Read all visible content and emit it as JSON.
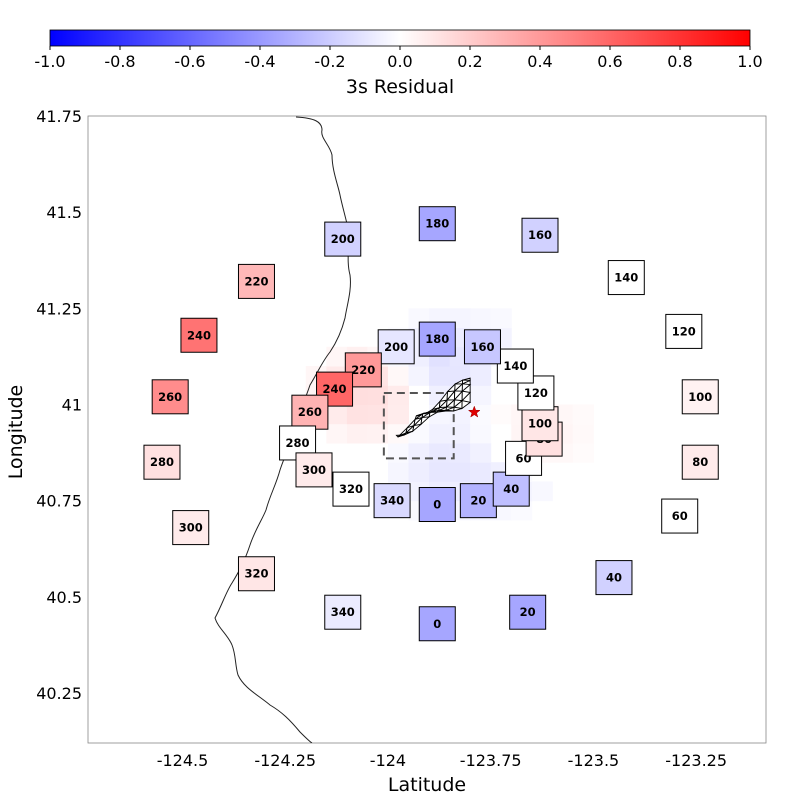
{
  "chart_data": {
    "type": "heatmap",
    "title": "",
    "xlabel": "Latitude",
    "ylabel": "Longitude",
    "xlim": [
      -124.73,
      -123.08
    ],
    "ylim": [
      40.12,
      41.75
    ],
    "x_ticks": [
      -124.5,
      -124.25,
      -124,
      -123.75,
      -123.5,
      -123.25
    ],
    "x_tick_labels": [
      "-124.5",
      "-124.25",
      "-124",
      "-123.75",
      "-123.5",
      "-123.25"
    ],
    "y_ticks": [
      40.25,
      40.5,
      40.75,
      41,
      41.25,
      41.5,
      41.75
    ],
    "y_tick_labels": [
      "40.25",
      "40.5",
      "40.75",
      "41",
      "41.25",
      "41.5",
      "41.75"
    ],
    "colorbar": {
      "label": "3s Residual",
      "range": [
        -1.0,
        1.0
      ],
      "ticks": [
        -1.0,
        -0.8,
        -0.6,
        -0.4,
        -0.2,
        0.0,
        0.2,
        0.4,
        0.6,
        0.8,
        1.0
      ],
      "tick_labels": [
        "-1.0",
        "-0.8",
        "-0.6",
        "-0.4",
        "-0.2",
        "0.0",
        "0.2",
        "0.4",
        "0.6",
        "0.8",
        "1.0"
      ],
      "colors": {
        "low": "#0000ff",
        "mid": "#ffffff",
        "high": "#ff0000"
      }
    },
    "station_rings": [
      {
        "ring": "outer",
        "stations": [
          {
            "az": "0",
            "x": -123.88,
            "y": 40.43,
            "residual": -0.35
          },
          {
            "az": "20",
            "x": -123.66,
            "y": 40.46,
            "residual": -0.35
          },
          {
            "az": "40",
            "x": -123.45,
            "y": 40.55,
            "residual": -0.18
          },
          {
            "az": "60",
            "x": -123.29,
            "y": 40.71,
            "residual": 0.0
          },
          {
            "az": "80",
            "x": -123.24,
            "y": 40.85,
            "residual": 0.08
          },
          {
            "az": "100",
            "x": -123.24,
            "y": 41.02,
            "residual": 0.05
          },
          {
            "az": "120",
            "x": -123.28,
            "y": 41.19,
            "residual": 0.0
          },
          {
            "az": "140",
            "x": -123.42,
            "y": 41.33,
            "residual": 0.0
          },
          {
            "az": "160",
            "x": -123.63,
            "y": 41.44,
            "residual": -0.18
          },
          {
            "az": "180",
            "x": -123.88,
            "y": 41.47,
            "residual": -0.35
          },
          {
            "az": "200",
            "x": -124.11,
            "y": 41.43,
            "residual": -0.18
          },
          {
            "az": "220",
            "x": -124.32,
            "y": 41.32,
            "residual": 0.28
          },
          {
            "az": "240",
            "x": -124.46,
            "y": 41.18,
            "residual": 0.55
          },
          {
            "az": "260",
            "x": -124.53,
            "y": 41.02,
            "residual": 0.45
          },
          {
            "az": "280",
            "x": -124.55,
            "y": 40.85,
            "residual": 0.12
          },
          {
            "az": "300",
            "x": -124.48,
            "y": 40.68,
            "residual": 0.08
          },
          {
            "az": "320",
            "x": -124.32,
            "y": 40.56,
            "residual": 0.1
          },
          {
            "az": "340",
            "x": -124.11,
            "y": 40.46,
            "residual": -0.08
          }
        ]
      },
      {
        "ring": "inner",
        "stations": [
          {
            "az": "0",
            "x": -123.88,
            "y": 40.74,
            "residual": -0.35
          },
          {
            "az": "20",
            "x": -123.78,
            "y": 40.75,
            "residual": -0.3
          },
          {
            "az": "40",
            "x": -123.7,
            "y": 40.78,
            "residual": -0.25
          },
          {
            "az": "60",
            "x": -123.67,
            "y": 40.86,
            "residual": 0.0
          },
          {
            "az": "80",
            "x": -123.62,
            "y": 40.91,
            "residual": 0.12
          },
          {
            "az": "100",
            "x": -123.63,
            "y": 40.95,
            "residual": 0.1
          },
          {
            "az": "120",
            "x": -123.64,
            "y": 41.03,
            "residual": 0.0
          },
          {
            "az": "140",
            "x": -123.69,
            "y": 41.1,
            "residual": 0.0
          },
          {
            "az": "160",
            "x": -123.77,
            "y": 41.15,
            "residual": -0.22
          },
          {
            "az": "180",
            "x": -123.88,
            "y": 41.17,
            "residual": -0.35
          },
          {
            "az": "200",
            "x": -123.98,
            "y": 41.15,
            "residual": -0.1
          },
          {
            "az": "220",
            "x": -124.06,
            "y": 41.09,
            "residual": 0.4
          },
          {
            "az": "240",
            "x": -124.13,
            "y": 41.04,
            "residual": 0.6
          },
          {
            "az": "260",
            "x": -124.19,
            "y": 40.98,
            "residual": 0.3
          },
          {
            "az": "280",
            "x": -124.22,
            "y": 40.9,
            "residual": 0.0
          },
          {
            "az": "300",
            "x": -124.18,
            "y": 40.83,
            "residual": 0.08
          },
          {
            "az": "320",
            "x": -124.09,
            "y": 40.78,
            "residual": 0.0
          },
          {
            "az": "340",
            "x": -123.99,
            "y": 40.75,
            "residual": -0.15
          }
        ]
      }
    ],
    "epicenter": {
      "x": -123.79,
      "y": 40.98
    },
    "source_box": {
      "x0": -124.01,
      "x1": -123.84,
      "y0": 40.86,
      "y1": 41.03
    }
  }
}
